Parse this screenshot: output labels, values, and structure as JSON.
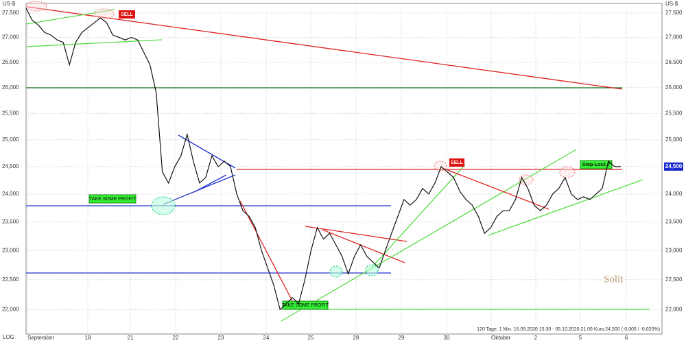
{
  "chart_data": {
    "type": "line",
    "y_unit": "US-$",
    "scale_label": "LOG",
    "log_scale": true,
    "grid": true,
    "ylim": [
      21600,
      27700
    ],
    "yticks": [
      {
        "value": 22000,
        "label": "22,000"
      },
      {
        "value": 22500,
        "label": "22,500"
      },
      {
        "value": 23000,
        "label": "23,000"
      },
      {
        "value": 23500,
        "label": "23,500"
      },
      {
        "value": 24000,
        "label": "24,000"
      },
      {
        "value": 24500,
        "label": "24,500"
      },
      {
        "value": 25000,
        "label": "25,000"
      },
      {
        "value": 25500,
        "label": "25,500"
      },
      {
        "value": 26000,
        "label": "26,000"
      },
      {
        "value": 26500,
        "label": "26,500"
      },
      {
        "value": 27000,
        "label": "27,000"
      },
      {
        "value": 27500,
        "label": "27,500"
      }
    ],
    "x_labels": [
      "September",
      "18",
      "21",
      "22",
      "23",
      "24",
      "25",
      "28",
      "29",
      "30",
      "Oktober",
      "2",
      "5",
      "6"
    ],
    "series": [
      {
        "color": "#111111",
        "values": [
          27600,
          27350,
          27250,
          27100,
          27050,
          26950,
          26900,
          26450,
          26900,
          27100,
          27200,
          27300,
          27400,
          27300,
          27050,
          27000,
          26950,
          27000,
          26950,
          26700,
          26450,
          25900,
          24400,
          24200,
          24500,
          24700,
          25100,
          24600,
          24200,
          24300,
          24700,
          24500,
          24600,
          24500,
          24000,
          23700,
          23600,
          23400,
          23000,
          22700,
          22400,
          22000,
          22100,
          22200,
          22100,
          22500,
          23000,
          23400,
          23200,
          23300,
          23100,
          22900,
          22600,
          22900,
          23100,
          22900,
          22800,
          22700,
          23000,
          23300,
          23600,
          23900,
          23800,
          23900,
          24100,
          24000,
          24200,
          24500,
          24400,
          24300,
          24050,
          23900,
          23800,
          23600,
          23300,
          23400,
          23600,
          23700,
          23700,
          23900,
          24300,
          24100,
          23800,
          23700,
          23800,
          24000,
          24100,
          24300,
          24000,
          23900,
          23950,
          23900,
          24000,
          24100,
          24600,
          24500,
          24500
        ]
      }
    ],
    "last_price": {
      "value": 24500,
      "label": "24,500"
    },
    "annotations": [
      "SELL",
      "SELL",
      "TAKE SOME PROFIT",
      "TAKE SOME PROFIT",
      "Stop-Loss ?"
    ],
    "logo": "Solit",
    "info": "120 Tage, 1 Min. 16.09.2020 15:30 - 05.10.2020 21:09 Kurs:24,500 (-0,005 / -0,020%)"
  }
}
